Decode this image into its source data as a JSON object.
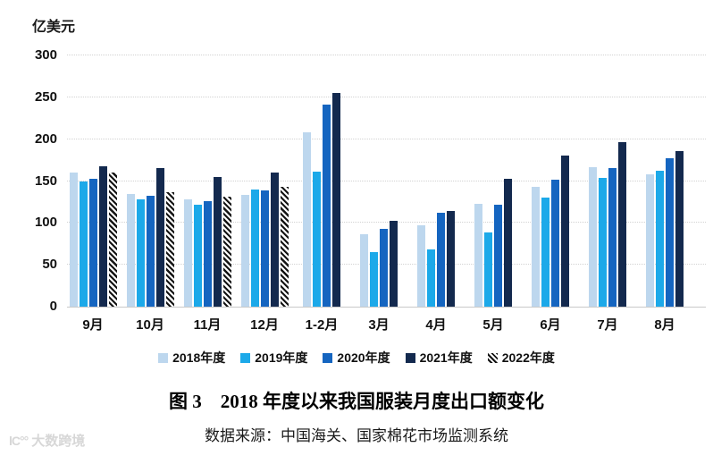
{
  "chart_data": {
    "type": "bar",
    "title": "图 3　2018 年度以来我国服装月度出口额变化",
    "source": "数据来源：中国海关、国家棉花市场监测系统",
    "unit_label": "亿美元",
    "categories": [
      "9月",
      "10月",
      "11月",
      "12月",
      "1-2月",
      "3月",
      "4月",
      "5月",
      "6月",
      "7月",
      "8月"
    ],
    "series": [
      {
        "name": "2018年度",
        "color": "#BDD7EE",
        "hatch": false,
        "values": [
          160,
          135,
          128,
          133,
          208,
          87,
          97,
          123,
          143,
          167,
          158
        ]
      },
      {
        "name": "2019年度",
        "color": "#1CA9E9",
        "hatch": false,
        "values": [
          149,
          128,
          122,
          140,
          161,
          65,
          68,
          89,
          130,
          154,
          162
        ]
      },
      {
        "name": "2020年度",
        "color": "#1565C0",
        "hatch": false,
        "values": [
          153,
          132,
          126,
          139,
          241,
          93,
          112,
          122,
          152,
          166,
          177
        ]
      },
      {
        "name": "2021年度",
        "color": "#13294E",
        "hatch": false,
        "values": [
          168,
          165,
          155,
          160,
          255,
          103,
          114,
          153,
          181,
          197,
          186
        ]
      },
      {
        "name": "2022年度",
        "color": "#141414",
        "hatch": true,
        "values": [
          160,
          137,
          131,
          143,
          null,
          null,
          null,
          null,
          null,
          null,
          null
        ]
      }
    ],
    "ylim": [
      0,
      300
    ],
    "ytick_step": 50,
    "grid": "horizontal-dotted",
    "legend_position": "bottom",
    "hatch_background": "#ffffff",
    "grid_color": "#d2d2d2"
  },
  "watermark": {
    "text": "大数跨境",
    "logo": "lC°°"
  }
}
